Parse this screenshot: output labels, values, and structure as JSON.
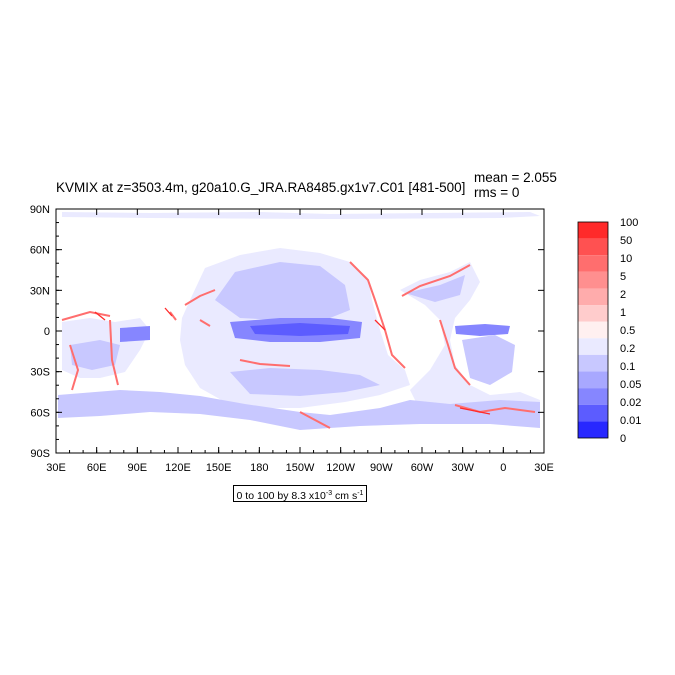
{
  "chart_data": {
    "type": "heatmap",
    "title": "KVMIX at z=3503.4m, g20a10.G_JRA.RA8485.gx1v7.C01 [481-500]",
    "stats": {
      "mean_label": "mean = 2.055",
      "rms_label": "rms = 0"
    },
    "xticks": [
      "30E",
      "60E",
      "90E",
      "120E",
      "150E",
      "180",
      "150W",
      "120W",
      "90W",
      "60W",
      "30W",
      "0",
      "30E"
    ],
    "yticks": [
      "90N",
      "60N",
      "30N",
      "0",
      "30S",
      "60S",
      "90S"
    ],
    "units_box": {
      "prefix": "0 to 100 by 8.3 x10",
      "exp1": "-3",
      "mid": " cm s",
      "exp2": "-1"
    },
    "colorbar": {
      "levels": [
        "100",
        "50",
        "10",
        "5",
        "2",
        "1",
        "0.5",
        "0.2",
        "0.1",
        "0.05",
        "0.02",
        "0.01",
        "0"
      ],
      "colors": [
        "#ff2a2a",
        "#ff5151",
        "#ff6e6e",
        "#ff8f8f",
        "#ffacac",
        "#ffcccc",
        "#fff0f0",
        "#eaeaff",
        "#c8c8ff",
        "#a8a8ff",
        "#8686ff",
        "#5c5cff",
        "#2828ff"
      ]
    },
    "xlim": [
      30,
      390
    ],
    "ylim": [
      -90,
      90
    ]
  }
}
